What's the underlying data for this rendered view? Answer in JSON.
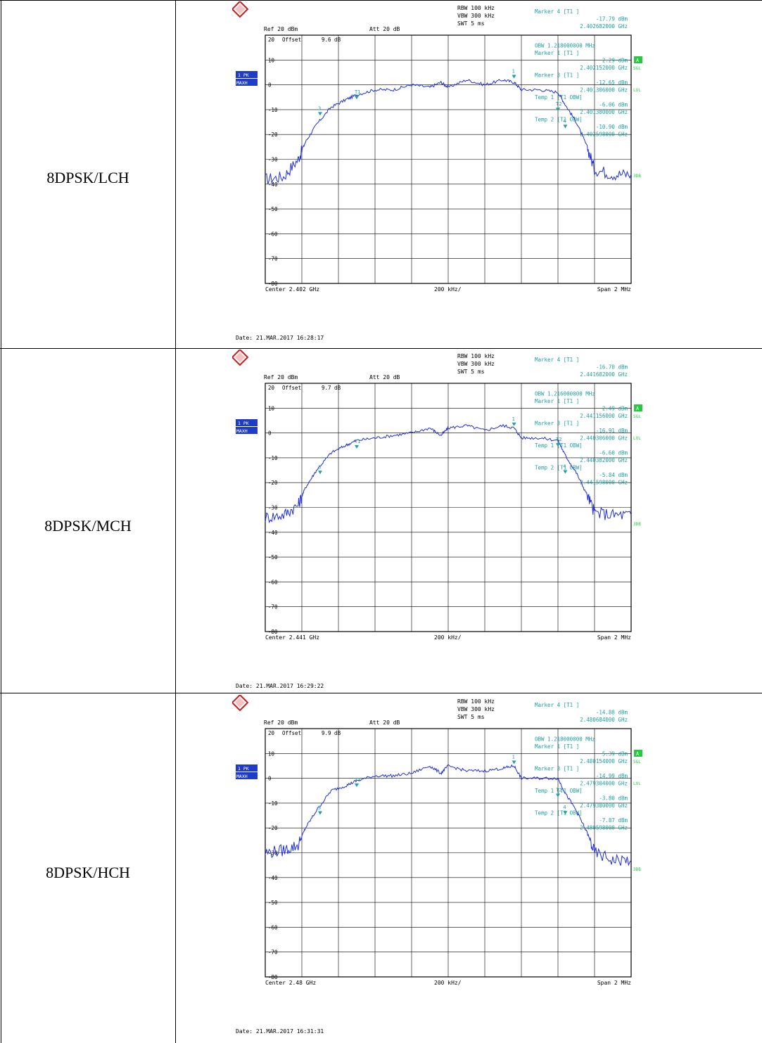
{
  "rows": [
    {
      "label": "8DPSK/LCH",
      "chart_data": {
        "type": "line",
        "instrument_settings": {
          "rbw": "RBW 100 kHz",
          "vbw": "VBW 300 kHz",
          "swt": "SWT 5 ms",
          "ref": "Ref  20 dBm",
          "att": "Att  20 dB",
          "offset_label": "Offset",
          "offset_value": "9.6 dB",
          "trace_label_1": "1 PK",
          "trace_label_2": "MAXH",
          "side_a": "A",
          "side_sgl": "SGL",
          "side_lvl": "LVL",
          "side_3db": "3DB"
        },
        "marker_table": [
          "Marker 4 [T1 ]",
          "-17.79 dBm",
          "2.402682000 GHz",
          "OBW   1.218000000 MHz",
          "Marker 1 [T1 ]",
          "2.29 dBm",
          "2.402152000 GHz",
          "Marker 3 [T1 ]",
          "-12.65 dBm",
          "2.401306000 GHz",
          "Temp 1 [T1 OBW]",
          "-6.06 dBm",
          "2.401380000 GHz",
          "Temp 2 [T1 OBW]",
          "-10.90 dBm",
          "2.402598000 GHz"
        ],
        "y_tick_labels": [
          "20",
          "10",
          "0",
          "-10",
          "-20",
          "-30",
          "-40",
          "-50",
          "-60",
          "-70",
          "-80"
        ],
        "ylim": [
          -80,
          20
        ],
        "xlim_mhz_offset": [
          -1,
          1
        ],
        "center_label": "Center  2.402 GHz",
        "span_per_div_label": "200 kHz/",
        "span_label": "Span  2 MHz",
        "date": "Date: 21.MAR.2017  16:28:17",
        "trace": {
          "x": [
            -1.0,
            -0.9,
            -0.82,
            -0.78,
            -0.72,
            -0.64,
            -0.56,
            -0.5,
            -0.4,
            -0.3,
            -0.2,
            -0.1,
            -0.04,
            0.0,
            0.1,
            0.2,
            0.3,
            0.36,
            0.4,
            0.5,
            0.6,
            0.64,
            0.7,
            0.76,
            0.8,
            0.9,
            1.0
          ],
          "y": [
            -38,
            -37,
            -30,
            -23,
            -16,
            -9,
            -6,
            -4,
            -2,
            -2,
            0,
            -1,
            1,
            -1,
            2,
            0,
            2,
            1,
            -2,
            -2,
            -3,
            -8,
            -15,
            -25,
            -34,
            -36,
            -36
          ]
        },
        "markers": [
          {
            "name": "1",
            "x": 0.36,
            "y": 2.3
          },
          {
            "name": "3",
            "x": -0.7,
            "y": -12.7
          },
          {
            "name": "T1",
            "x": -0.5,
            "y": -6.1
          },
          {
            "name": "T2",
            "x": 0.6,
            "y": -10.9
          },
          {
            "name": "4",
            "x": 0.64,
            "y": -17.8
          }
        ]
      }
    },
    {
      "label": "8DPSK/MCH",
      "chart_data": {
        "type": "line",
        "instrument_settings": {
          "rbw": "RBW 100 kHz",
          "vbw": "VBW 300 kHz",
          "swt": "SWT 5 ms",
          "ref": "Ref  20 dBm",
          "att": "Att  20 dB",
          "offset_label": "Offset",
          "offset_value": "9.7 dB",
          "trace_label_1": "1 PK",
          "trace_label_2": "MAXH",
          "side_a": "A",
          "side_sgl": "SGL",
          "side_lvl": "LVL",
          "side_3db": "3DB"
        },
        "marker_table": [
          "Marker 4 [T1 ]",
          "-16.70 dBm",
          "2.441682000 GHz",
          "OBW   1.216000000 MHz",
          "Marker 1 [T1 ]",
          "2.49 dBm",
          "2.441156000 GHz",
          "Marker 3 [T1 ]",
          "-16.91 dBm",
          "2.440306000 GHz",
          "Temp 1 [T1 OBW]",
          "-6.60 dBm",
          "2.440382000 GHz",
          "Temp 2 [T1 OBW]",
          "-5.84 dBm",
          "2.441598000 GHz"
        ],
        "y_tick_labels": [
          "20",
          "10",
          "0",
          "-10",
          "-20",
          "-30",
          "-40",
          "-50",
          "-60",
          "-70",
          "-80"
        ],
        "ylim": [
          -80,
          20
        ],
        "xlim_mhz_offset": [
          -1,
          1
        ],
        "center_label": "Center  2.441 GHz",
        "span_per_div_label": "200 kHz/",
        "span_label": "Span  2 MHz",
        "date": "Date: 21.MAR.2017  16:29:22",
        "trace": {
          "x": [
            -1.0,
            -0.9,
            -0.82,
            -0.78,
            -0.72,
            -0.64,
            -0.56,
            -0.5,
            -0.4,
            -0.3,
            -0.2,
            -0.1,
            -0.04,
            0.0,
            0.1,
            0.2,
            0.3,
            0.36,
            0.4,
            0.5,
            0.6,
            0.64,
            0.7,
            0.76,
            0.8,
            0.9,
            1.0
          ],
          "y": [
            -34,
            -33,
            -29,
            -22,
            -15,
            -8,
            -5,
            -3,
            -2,
            -1,
            0,
            2,
            -1,
            2,
            3,
            1,
            3,
            2,
            -2,
            -2,
            -3,
            -9,
            -16,
            -25,
            -32,
            -33,
            -33
          ]
        },
        "markers": [
          {
            "name": "1",
            "x": 0.36,
            "y": 2.5
          },
          {
            "name": "3",
            "x": -0.7,
            "y": -16.9
          },
          {
            "name": "T1",
            "x": -0.5,
            "y": -6.6
          },
          {
            "name": "T2",
            "x": 0.6,
            "y": -5.8
          },
          {
            "name": "4",
            "x": 0.64,
            "y": -16.7
          }
        ]
      }
    },
    {
      "label": "8DPSK/HCH",
      "chart_data": {
        "type": "line",
        "instrument_settings": {
          "rbw": "RBW 100 kHz",
          "vbw": "VBW 300 kHz",
          "swt": "SWT 5 ms",
          "ref": "Ref  20 dBm",
          "att": "Att  20 dB",
          "offset_label": "Offset",
          "offset_value": "9.9 dB",
          "trace_label_1": "1 PK",
          "trace_label_2": "MAXH",
          "side_a": "A",
          "side_sgl": "SGL",
          "side_lvl": "LVL",
          "side_3db": "3DB"
        },
        "marker_table": [
          "Marker 4 [T1 ]",
          "-14.88 dBm",
          "2.480684000 GHz",
          "OBW   1.218000000 MHz",
          "Marker 1 [T1 ]",
          "5.39 dBm",
          "2.480154000 GHz",
          "Marker 3 [T1 ]",
          "-14.99 dBm",
          "2.479304000 GHz",
          "Temp 1 [T1 OBW]",
          "-3.80 dBm",
          "2.479380000 GHz",
          "Temp 2 [T1 OBW]",
          "-7.87 dBm",
          "2.480598000 GHz"
        ],
        "y_tick_labels": [
          "20",
          "10",
          "0",
          "-10",
          "-20",
          "-30",
          "-40",
          "-50",
          "-60",
          "-70",
          "-80"
        ],
        "ylim": [
          -80,
          20
        ],
        "xlim_mhz_offset": [
          -1,
          1
        ],
        "center_label": "Center  2.48 GHz",
        "span_per_div_label": "200 kHz/",
        "span_label": "Span  2 MHz",
        "date": "Date: 21.MAR.2017  16:31:31",
        "trace": {
          "x": [
            -1.0,
            -0.9,
            -0.82,
            -0.78,
            -0.72,
            -0.64,
            -0.56,
            -0.5,
            -0.4,
            -0.3,
            -0.2,
            -0.1,
            -0.04,
            0.0,
            0.1,
            0.2,
            0.3,
            0.36,
            0.4,
            0.5,
            0.6,
            0.64,
            0.7,
            0.76,
            0.8,
            0.9,
            1.0
          ],
          "y": [
            -30,
            -29,
            -27,
            -20,
            -13,
            -5,
            -3,
            -1,
            1,
            1,
            2,
            5,
            2,
            5,
            3,
            3,
            4,
            5,
            0,
            0,
            0,
            -6,
            -13,
            -22,
            -30,
            -33,
            -33
          ]
        },
        "markers": [
          {
            "name": "1",
            "x": 0.36,
            "y": 5.4
          },
          {
            "name": "3",
            "x": -0.7,
            "y": -15.0
          },
          {
            "name": "T1",
            "x": -0.5,
            "y": -3.8
          },
          {
            "name": "T2",
            "x": 0.6,
            "y": -7.9
          },
          {
            "name": "4",
            "x": 0.64,
            "y": -14.9
          }
        ]
      }
    }
  ],
  "colors": {
    "trace": "#1f2fd8",
    "annotation": "#20a0a0",
    "grid": "#000000",
    "badge_blue": "#1e3cc8",
    "badge_green": "#27c93f"
  }
}
